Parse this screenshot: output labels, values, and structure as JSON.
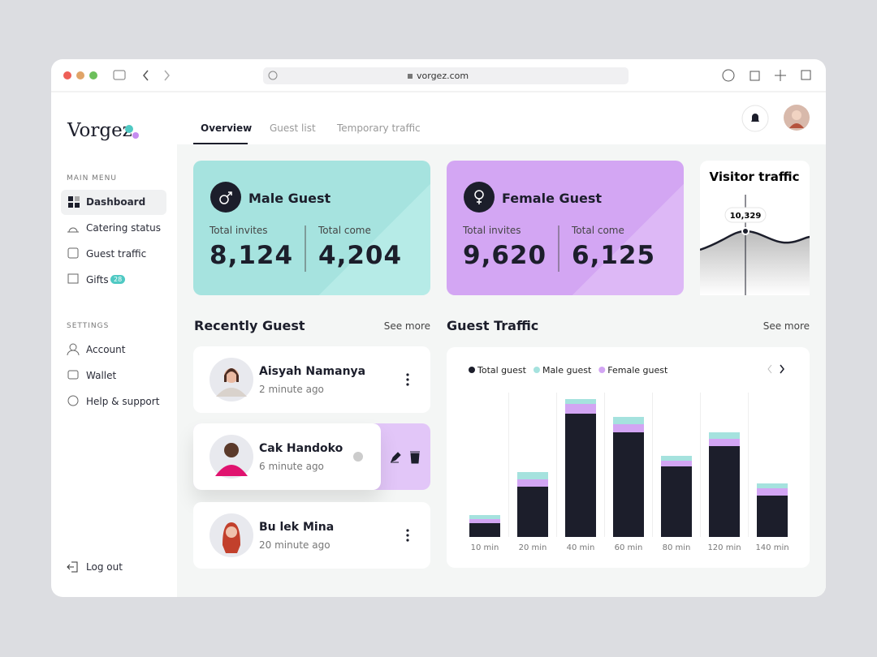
{
  "browser": {
    "url": "vorgez.com"
  },
  "sidebar": {
    "logo": "Vorgez",
    "main_menu_heading": "MAIN MENU",
    "main_menu": [
      {
        "label": "Dashboard"
      },
      {
        "label": "Catering status"
      },
      {
        "label": "Guest traffic"
      },
      {
        "label": "Gifts",
        "badge": "28"
      }
    ],
    "settings_heading": "SETTINGS",
    "settings": [
      "Account",
      "Wallet",
      "Help & support"
    ],
    "logout": "Log out"
  },
  "tabs": [
    "Overview",
    "Guest list",
    "Temporary traffic"
  ],
  "cards": [
    {
      "title": "Male Guest",
      "invites_label": "Total invites",
      "invites": "8,124",
      "come_label": "Total come",
      "come": "4,204"
    },
    {
      "title": "Female Guest",
      "invites_label": "Total invites",
      "invites": "9,620",
      "come_label": "Total come",
      "come": "6,125"
    }
  ],
  "visitor_traffic": {
    "title": "Visitor traffic",
    "value_label": "10,329"
  },
  "recent": {
    "title": "Recently Guest",
    "see_more": "See more",
    "guests": [
      {
        "name": "Aisyah Namanya",
        "time": "2 minute ago"
      },
      {
        "name": "Cak Handoko",
        "time": "6 minute ago"
      },
      {
        "name": "Bu lek Mina",
        "time": "20 minute ago"
      }
    ]
  },
  "chart_data": {
    "type": "bar",
    "title": "Guest Traffic",
    "see_more": "See more",
    "stacked": true,
    "categories": [
      "10 min",
      "20 min",
      "40 min",
      "60 min",
      "80 min",
      "120 min",
      "140 min"
    ],
    "series": [
      {
        "name": "Total guest",
        "color": "#1c1e2b",
        "values": [
          17,
          62,
          152,
          129,
          87,
          112,
          51
        ]
      },
      {
        "name": "Male guest",
        "color": "#a5e2de",
        "values": [
          5,
          9,
          6,
          9,
          6,
          8,
          6
        ]
      },
      {
        "name": "Female guest",
        "color": "#d2a5f3",
        "values": [
          5,
          9,
          12,
          10,
          7,
          9,
          9
        ]
      }
    ]
  }
}
